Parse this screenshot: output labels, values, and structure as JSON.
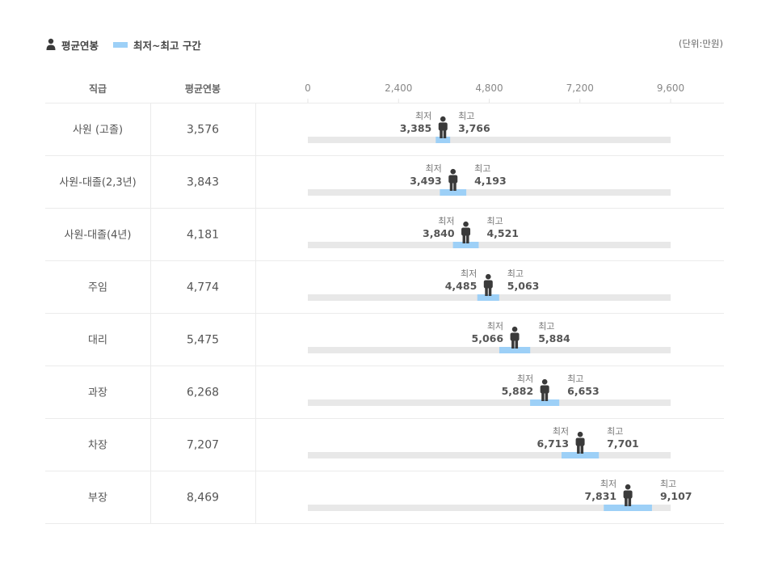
{
  "legend": {
    "person_icon": "person-icon",
    "average_label": "평균연봉",
    "range_label": "최저~최고 구간",
    "range_color": "#9dd0f7"
  },
  "unit_label": "(단위:만원)",
  "table_header": {
    "rank": "직급",
    "average": "평균연봉"
  },
  "colors": {
    "track": "#e8e8e8",
    "range": "#9dd0f7",
    "person": "#3a3a3a",
    "grid": "#e6e6e6"
  },
  "chart_data": {
    "type": "range_bar",
    "x_ticks": [
      "0",
      "2,400",
      "4,800",
      "7,200",
      "9,600"
    ],
    "x_tick_values": [
      0,
      2400,
      4800,
      7200,
      9600
    ],
    "xlim": [
      0,
      9600
    ],
    "min_label": "최저",
    "max_label": "최고",
    "rows": [
      {
        "rank": "사원 (고졸)",
        "average": 3576,
        "average_text": "3,576",
        "min": 3385,
        "min_text": "3,385",
        "max": 3766,
        "max_text": "3,766"
      },
      {
        "rank": "사원-대졸(2,3년)",
        "average": 3843,
        "average_text": "3,843",
        "min": 3493,
        "min_text": "3,493",
        "max": 4193,
        "max_text": "4,193"
      },
      {
        "rank": "사원-대졸(4년)",
        "average": 4181,
        "average_text": "4,181",
        "min": 3840,
        "min_text": "3,840",
        "max": 4521,
        "max_text": "4,521"
      },
      {
        "rank": "주임",
        "average": 4774,
        "average_text": "4,774",
        "min": 4485,
        "min_text": "4,485",
        "max": 5063,
        "max_text": "5,063"
      },
      {
        "rank": "대리",
        "average": 5475,
        "average_text": "5,475",
        "min": 5066,
        "min_text": "5,066",
        "max": 5884,
        "max_text": "5,884"
      },
      {
        "rank": "과장",
        "average": 6268,
        "average_text": "6,268",
        "min": 5882,
        "min_text": "5,882",
        "max": 6653,
        "max_text": "6,653"
      },
      {
        "rank": "차장",
        "average": 7207,
        "average_text": "7,207",
        "min": 6713,
        "min_text": "6,713",
        "max": 7701,
        "max_text": "7,701"
      },
      {
        "rank": "부장",
        "average": 8469,
        "average_text": "8,469",
        "min": 7831,
        "min_text": "7,831",
        "max": 9107,
        "max_text": "9,107"
      }
    ]
  }
}
